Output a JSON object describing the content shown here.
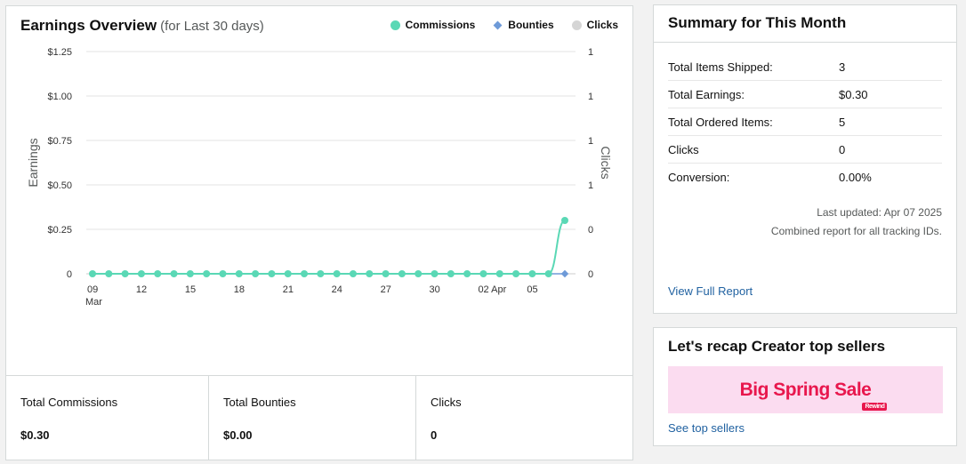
{
  "earnings": {
    "title": "Earnings Overview",
    "subtitle": "(for Last 30 days)",
    "legend": [
      {
        "label": "Commissions",
        "color": "#5ad8b5",
        "shape": "dot"
      },
      {
        "label": "Bounties",
        "color": "#6e9ad8",
        "shape": "diamond"
      },
      {
        "label": "Clicks",
        "color": "#d5d5d5",
        "shape": "dot"
      }
    ],
    "totals": [
      {
        "label": "Total Commissions",
        "value": "$0.30"
      },
      {
        "label": "Total Bounties",
        "value": "$0.00"
      },
      {
        "label": "Clicks",
        "value": "0"
      }
    ]
  },
  "chart_data": {
    "type": "line",
    "ylabel": "Earnings",
    "y2label": "Clicks",
    "ylim": [
      0,
      1.25
    ],
    "y_ticks": [
      "0",
      "$0.25",
      "$0.50",
      "$0.75",
      "$1.00",
      "$1.25"
    ],
    "y2_ticks": [
      "0",
      "0",
      "1",
      "1",
      "1",
      "1"
    ],
    "x_ticks": [
      {
        "day": 9,
        "label": "09",
        "sublabel": "Mar"
      },
      {
        "day": 12,
        "label": "12"
      },
      {
        "day": 15,
        "label": "15"
      },
      {
        "day": 18,
        "label": "18"
      },
      {
        "day": 21,
        "label": "21"
      },
      {
        "day": 24,
        "label": "24"
      },
      {
        "day": 27,
        "label": "27"
      },
      {
        "day": 30,
        "label": "30"
      },
      {
        "day": 33,
        "label": "02 Apr"
      },
      {
        "day": 36,
        "label": "05"
      }
    ],
    "x_days": [
      9,
      10,
      11,
      12,
      13,
      14,
      15,
      16,
      17,
      18,
      19,
      20,
      21,
      22,
      23,
      24,
      25,
      26,
      27,
      28,
      29,
      30,
      31,
      32,
      33,
      34,
      35,
      36,
      37,
      38
    ],
    "series": [
      {
        "name": "Commissions",
        "color": "#5ad8b5",
        "values": [
          0,
          0,
          0,
          0,
          0,
          0,
          0,
          0,
          0,
          0,
          0,
          0,
          0,
          0,
          0,
          0,
          0,
          0,
          0,
          0,
          0,
          0,
          0,
          0,
          0,
          0,
          0,
          0,
          0,
          0.3
        ]
      },
      {
        "name": "Bounties",
        "color": "#6e9ad8",
        "values": [
          0,
          0,
          0,
          0,
          0,
          0,
          0,
          0,
          0,
          0,
          0,
          0,
          0,
          0,
          0,
          0,
          0,
          0,
          0,
          0,
          0,
          0,
          0,
          0,
          0,
          0,
          0,
          0,
          0,
          0
        ]
      }
    ],
    "grid": true,
    "legend_position": "top-right"
  },
  "summary": {
    "title": "Summary for This Month",
    "rows": [
      {
        "k": "Total Items Shipped:",
        "v": "3"
      },
      {
        "k": "Total Earnings:",
        "v": "$0.30"
      },
      {
        "k": "Total Ordered Items:",
        "v": "5"
      },
      {
        "k": "Clicks",
        "v": "0"
      },
      {
        "k": "Conversion:",
        "v": "0.00%"
      }
    ],
    "updated": "Last updated: Apr 07 2025",
    "note": "Combined report for all tracking IDs.",
    "link": "View Full Report"
  },
  "recap": {
    "title": "Let's recap Creator top sellers",
    "banner_text": "Big Spring Sale",
    "banner_badge": "Rewind",
    "link": "See top sellers"
  }
}
